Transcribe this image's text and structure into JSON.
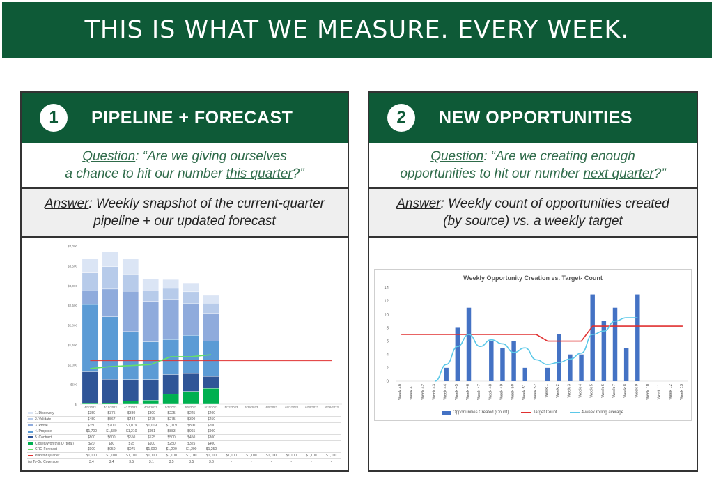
{
  "banner": {
    "title": "THIS IS WHAT WE MEASURE. EVERY WEEK."
  },
  "left_panel": {
    "number": "1",
    "title": "PIPELINE + FORECAST",
    "question_label": "Question",
    "question_line1": ": “Are we giving ourselves",
    "question_line2_pre": "a chance to hit our number ",
    "question_line2_u": "this quarter",
    "question_line2_post": "?”",
    "answer_label": "Answer",
    "answer_line1": ": Weekly snapshot of the current-quarter",
    "answer_line2": "pipeline + our updated forecast"
  },
  "right_panel": {
    "number": "2",
    "title": "NEW OPPORTUNITIES",
    "question_label": "Question",
    "question_line1": ": “Are we creating enough",
    "question_line2_pre": "opportunities to hit our number ",
    "question_line2_u": "next quarter",
    "question_line2_post": "?”",
    "answer_label": "Answer",
    "answer_line1": ": Weekly count of opportunities created",
    "answer_line2": "(by source) vs. a weekly target"
  },
  "colors": {
    "brand_green": "#0e5a37",
    "discovery": "#dbe5f5",
    "validate": "#b7cbea",
    "prove": "#8fabdc",
    "propose": "#5b9bd5",
    "contract": "#2f5597",
    "closed_won": "#00b050",
    "cro_forecast": "#66e066",
    "plan": "#e03030",
    "opp_bar": "#4472c4",
    "target": "#e03030",
    "rolling": "#5bc8e8"
  },
  "chart_data": [
    {
      "type": "bar",
      "subtype": "stacked-with-lines",
      "title": "",
      "ylim": [
        0,
        4000
      ],
      "y_ticks": [
        "$4,000",
        "$3,500",
        "$3,000",
        "$2,500",
        "$2,000",
        "$1,500",
        "$1,000",
        "$500",
        "$-"
      ],
      "categories": [
        "4/3/2023",
        "4/10/2023",
        "4/17/2023",
        "4/24/2023",
        "5/1/2023",
        "5/8/2023",
        "5/15/2023",
        "5/22/2023",
        "5/29/2023",
        "6/5/2023",
        "6/12/2023",
        "6/19/2023",
        "6/26/2023"
      ],
      "series": [
        {
          "name": "1. Discovery",
          "kind": "bar",
          "values": [
            350,
            375,
            380,
            300,
            225,
            225,
            200,
            null,
            null,
            null,
            null,
            null,
            null
          ],
          "display": [
            "$350",
            "$375",
            "$380",
            "$300",
            "$225",
            "$225",
            "$200",
            "",
            "",
            "",
            "",
            "",
            ""
          ]
        },
        {
          "name": "2. Validate",
          "kind": "bar",
          "values": [
            450,
            567,
            434,
            275,
            275,
            300,
            250,
            null,
            null,
            null,
            null,
            null,
            null
          ],
          "display": [
            "$450",
            "$567",
            "$434",
            "$275",
            "$275",
            "$300",
            "$250",
            "",
            "",
            "",
            "",
            "",
            ""
          ]
        },
        {
          "name": "3. Prove",
          "kind": "bar",
          "values": [
            350,
            700,
            1019,
            1019,
            1019,
            800,
            700,
            null,
            null,
            null,
            null,
            null,
            null
          ],
          "display": [
            "$350",
            "$700",
            "$1,019",
            "$1,019",
            "$1,019",
            "$800",
            "$700",
            "",
            "",
            "",
            "",
            "",
            ""
          ]
        },
        {
          "name": "4. Propose",
          "kind": "bar",
          "values": [
            1700,
            1580,
            1210,
            951,
            883,
            965,
            900,
            null,
            null,
            null,
            null,
            null,
            null
          ],
          "display": [
            "$1,700",
            "$1,580",
            "$1,210",
            "$951",
            "$883",
            "$965",
            "$900",
            "",
            "",
            "",
            "",
            "",
            ""
          ]
        },
        {
          "name": "5. Contract",
          "kind": "bar",
          "values": [
            800,
            600,
            550,
            525,
            500,
            450,
            300,
            null,
            null,
            null,
            null,
            null,
            null
          ],
          "display": [
            "$800",
            "$600",
            "$550",
            "$525",
            "$500",
            "$450",
            "$300",
            "",
            "",
            "",
            "",
            "",
            ""
          ]
        },
        {
          "name": "Closed/Won this Q (total)",
          "kind": "bar",
          "values": [
            20,
            30,
            75,
            100,
            250,
            325,
            400,
            null,
            null,
            null,
            null,
            null,
            null
          ],
          "display": [
            "$20",
            "$30",
            "$75",
            "$100",
            "$250",
            "$325",
            "$400",
            "",
            "",
            "",
            "",
            "",
            ""
          ]
        },
        {
          "name": "CRO Forecast",
          "kind": "line",
          "values": [
            900,
            950,
            975,
            1000,
            1200,
            1200,
            1250,
            null,
            null,
            null,
            null,
            null,
            null
          ],
          "display": [
            "$900",
            "$950",
            "$975",
            "$1,000",
            "$1,200",
            "$1,200",
            "$1,250",
            "",
            "",
            "",
            "",
            "",
            ""
          ]
        },
        {
          "name": "Plan for Quarter",
          "kind": "line",
          "values": [
            1100,
            1100,
            1100,
            1100,
            1100,
            1100,
            1100,
            1100,
            1100,
            1100,
            1100,
            1100,
            1100
          ],
          "display": [
            "$1,100",
            "$1,100",
            "$1,100",
            "$1,100",
            "$1,100",
            "$1,100",
            "$1,100",
            "$1,100",
            "$1,100",
            "$1,100",
            "$1,100",
            "$1,100",
            "$1,100"
          ]
        },
        {
          "name": "(x) To-Go Coverage",
          "kind": "table",
          "values": [
            3.4,
            3.4,
            3.5,
            3.1,
            3.5,
            3.5,
            3.6,
            null,
            null,
            null,
            null,
            null,
            null
          ],
          "display": [
            "3.4",
            "3.4",
            "3.5",
            "3.1",
            "3.5",
            "3.5",
            "3.6",
            "-",
            "-",
            "-",
            "-",
            "-",
            "-"
          ]
        }
      ]
    },
    {
      "type": "bar",
      "subtype": "bar-with-lines",
      "title": "Weekly Opportunity Creation vs. Target- Count",
      "ylim": [
        0,
        14
      ],
      "y_ticks": [
        0,
        2,
        4,
        6,
        8,
        10,
        12,
        14
      ],
      "categories": [
        "Week 40",
        "Week 41",
        "Week 42",
        "Week 43",
        "Week 44",
        "Week 45",
        "Week 46",
        "Week 47",
        "Week 48",
        "Week 49",
        "Week 50",
        "Week 51",
        "Week 52",
        "Week 1",
        "Week 2",
        "Week 3",
        "Week 4",
        "Week 5",
        "Week 6",
        "Week 7",
        "Week 8",
        "Week 9",
        "Week 10",
        "Week 11",
        "Week 12",
        "Week 13"
      ],
      "category_display": [
        "Week 40",
        "Week 41",
        "Week 42",
        "Week 43",
        "Week 44",
        "Week 45",
        "Week 46",
        "Week 47",
        "Week 48",
        "Week 49",
        "Week 50",
        "Week 51",
        "Week 52",
        "Week 1",
        "Week 2",
        "Week 3",
        "Week 4",
        "Week 5",
        "Week 6",
        "Week 7",
        "Week 8",
        "Week 9",
        "Week 10",
        "Week 11",
        "Week 12",
        "Week 13"
      ],
      "series": [
        {
          "name": "Opportunities Created (Count)",
          "kind": "bar",
          "values": [
            0,
            0,
            0,
            0,
            2,
            8,
            11,
            0,
            6,
            5,
            6,
            2,
            0,
            2,
            7,
            4,
            4,
            13,
            9,
            11,
            5,
            13,
            0,
            0,
            0,
            0
          ]
        },
        {
          "name": "Target Count",
          "kind": "line",
          "values": [
            7,
            7,
            7,
            7,
            7,
            7,
            7,
            7,
            7,
            7,
            7,
            7,
            7,
            6,
            6,
            6,
            6,
            8.25,
            8.25,
            8.25,
            8.25,
            8.25,
            8.25,
            8.25,
            8.25,
            8.25
          ]
        },
        {
          "name": "4-week rolling average",
          "kind": "line",
          "values": [
            null,
            null,
            null,
            0,
            2.5,
            5.2,
            7,
            5.2,
            6.2,
            5.6,
            4.3,
            5,
            3.2,
            2.5,
            2.8,
            3.3,
            4.2,
            7,
            7.5,
            9,
            9.5,
            9.5,
            null,
            null,
            null,
            null
          ]
        }
      ]
    }
  ]
}
